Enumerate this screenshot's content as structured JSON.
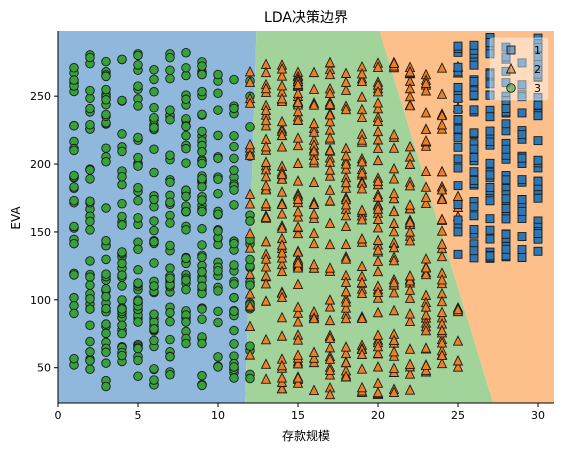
{
  "chart_data": {
    "type": "scatter",
    "title": "LDA决策边界",
    "xlabel": "存款规模",
    "ylabel": "EVA",
    "xlim": [
      0,
      31
    ],
    "ylim": [
      24,
      298
    ],
    "xticks": [
      0,
      5,
      10,
      15,
      20,
      25,
      30
    ],
    "yticks": [
      50,
      100,
      150,
      200,
      250
    ],
    "grid": false,
    "legend_position": "top-right",
    "regions": [
      {
        "class": "1",
        "color": "#8fb8dc",
        "polygon": [
          [
            0,
            24
          ],
          [
            11.7,
            24
          ],
          [
            12.4,
            298
          ],
          [
            0,
            298
          ]
        ]
      },
      {
        "class": "3",
        "color": "#a2d39a",
        "polygon": [
          [
            11.7,
            24
          ],
          [
            27.2,
            24
          ],
          [
            20.1,
            298
          ],
          [
            12.4,
            298
          ]
        ]
      },
      {
        "class": "2",
        "color": "#fdc08a",
        "polygon": [
          [
            27.2,
            24
          ],
          [
            31,
            24
          ],
          [
            31,
            298
          ],
          [
            20.1,
            298
          ]
        ]
      }
    ],
    "series": [
      {
        "name": "1",
        "marker": "square",
        "color": "#2e77b5",
        "x_range": [
          25,
          30.5
        ],
        "y_range": [
          130,
          295
        ],
        "n": 190
      },
      {
        "name": "2",
        "marker": "triangle",
        "color": "#f17f22",
        "x_range": [
          12.2,
          25
        ],
        "y_range": [
          30,
          275
        ],
        "n": 520
      },
      {
        "name": "3",
        "marker": "circle",
        "color": "#37a23a",
        "x_range": [
          0.8,
          12
        ],
        "y_range": [
          36,
          282
        ],
        "n": 440
      }
    ]
  }
}
